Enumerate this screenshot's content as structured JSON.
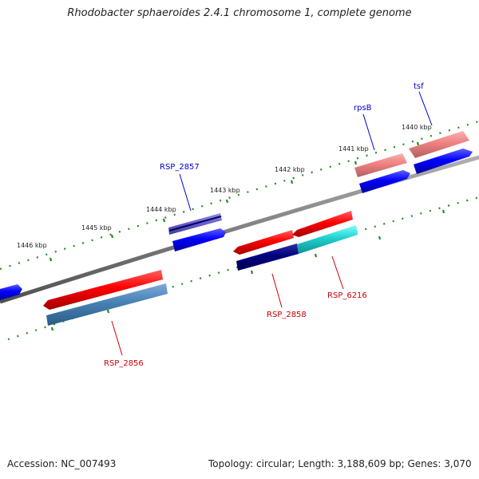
{
  "title": "Rhodobacter sphaeroides 2.4.1 chromosome 1, complete genome",
  "footer": {
    "accession": "Accession: NC_007493",
    "summary": "Topology: circular; Length: 3,188,609 bp; Genes: 3,070"
  },
  "scale_labels": [
    "1440 kbp",
    "1441 kbp",
    "1442 kbp",
    "1443 kbp",
    "1444 kbp",
    "1445 kbp",
    "1446 kbp"
  ],
  "gene_labels": [
    {
      "name": "tsf",
      "color": "#0000cc"
    },
    {
      "name": "rpsB",
      "color": "#0000cc"
    },
    {
      "name": "RSP_2857",
      "color": "#0000cc"
    },
    {
      "name": "RSP_2858",
      "color": "#cc0000"
    },
    {
      "name": "RSP_6216",
      "color": "#cc0000"
    },
    {
      "name": "RSP_2856",
      "color": "#cc0000"
    }
  ],
  "colors": {
    "backbone": "#808080",
    "tick": "#228b22",
    "forward_gene": "#0000ff",
    "reverse_gene": "#ff0000"
  }
}
